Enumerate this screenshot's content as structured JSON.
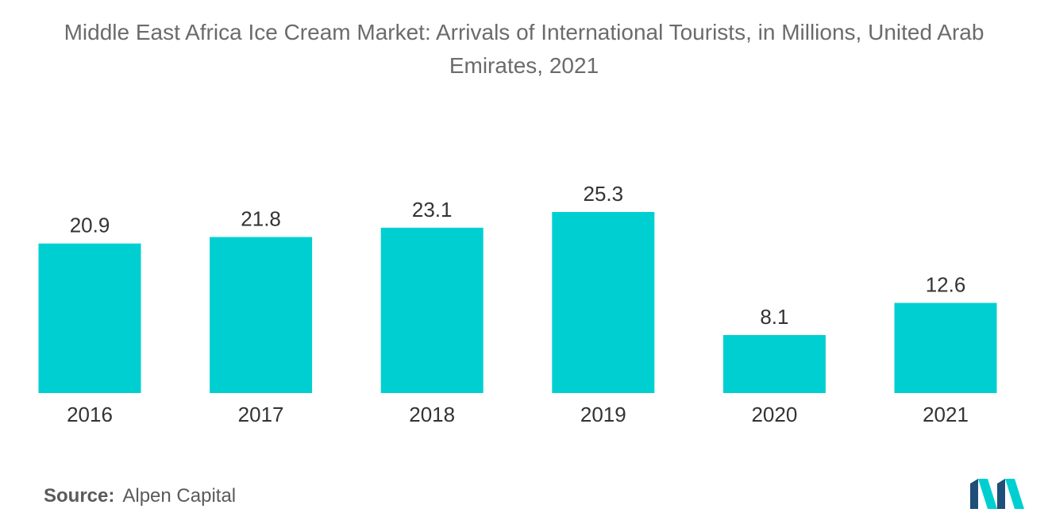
{
  "title": "Middle East Africa Ice Cream Market: Arrivals of International Tourists, in Millions, United Arab Emirates, 2021",
  "source": {
    "label": "Source:",
    "value": "Alpen Capital"
  },
  "logo_icon": "mordor-intelligence-logo-icon",
  "colors": {
    "bar": "#00cfd1",
    "text": "#333333"
  },
  "chart_data": {
    "type": "bar",
    "title": "Middle East Africa Ice Cream Market: Arrivals of International Tourists, in Millions, United Arab Emirates, 2021",
    "categories": [
      "2016",
      "2017",
      "2018",
      "2019",
      "2020",
      "2021"
    ],
    "values": [
      20.9,
      21.8,
      23.1,
      25.3,
      8.1,
      12.6
    ],
    "value_labels": [
      "20.9",
      "21.8",
      "23.1",
      "25.3",
      "8.1",
      "12.6"
    ],
    "xlabel": "",
    "ylabel": "",
    "ylim": [
      0,
      25.3
    ],
    "grid": false,
    "legend": "none"
  }
}
